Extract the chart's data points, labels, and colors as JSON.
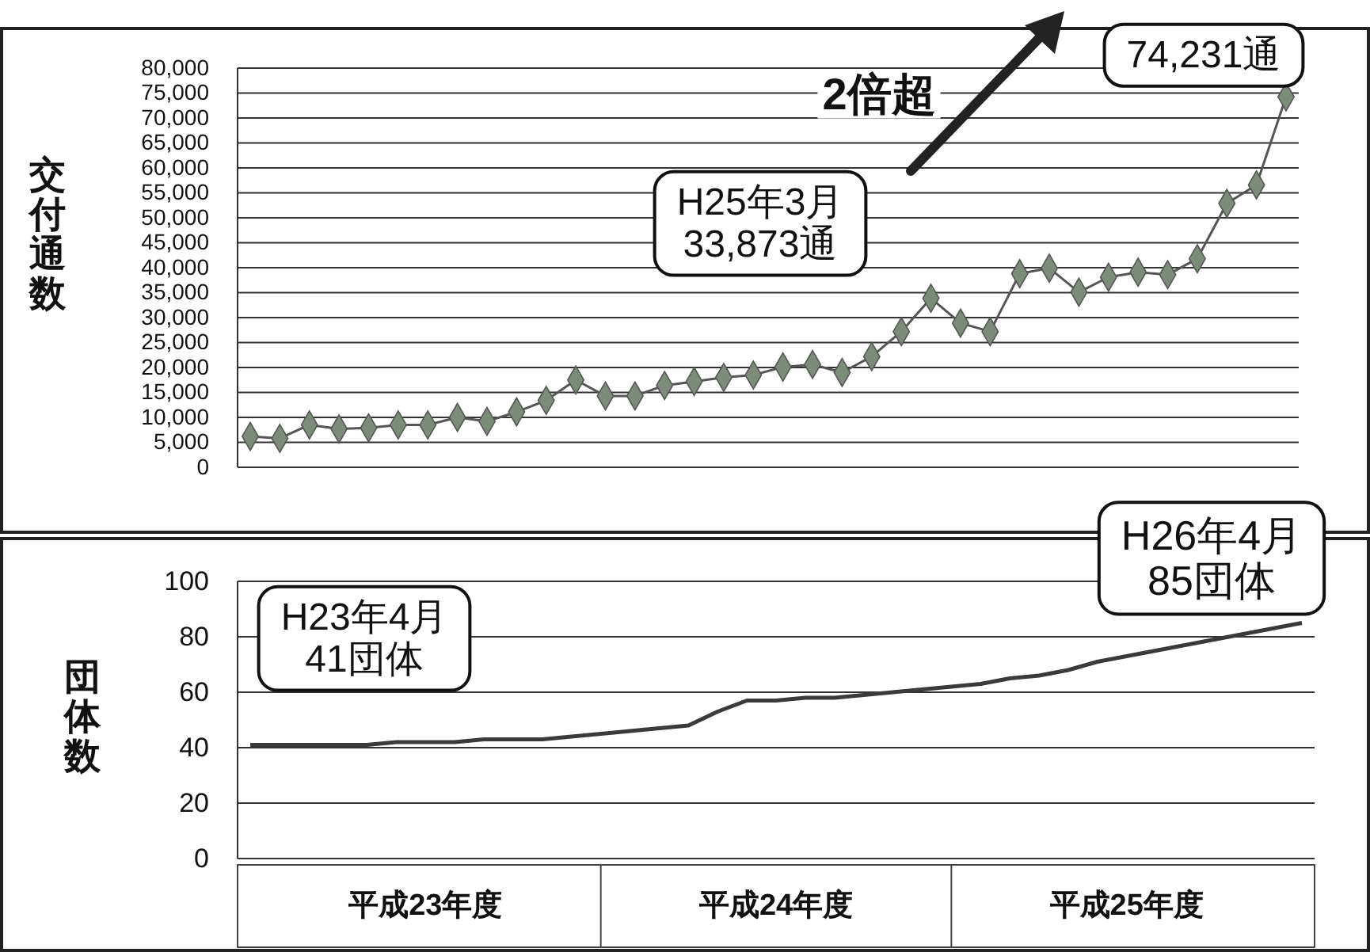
{
  "chart_data": [
    {
      "type": "line",
      "ylabel": "交付通数",
      "categories": [
        null,
        null,
        null,
        null,
        null,
        null,
        null,
        null,
        null,
        null,
        null,
        null,
        null,
        null,
        null,
        null,
        null,
        null,
        null,
        null,
        null,
        null,
        null,
        null,
        null,
        null,
        null,
        null,
        null,
        null,
        null,
        null,
        null,
        null,
        null,
        null
      ],
      "series": [
        {
          "color": "#7d8c7a",
          "values": [
            6200,
            5800,
            8500,
            7700,
            7900,
            8500,
            8500,
            10000,
            9200,
            11100,
            13400,
            17500,
            14300,
            14300,
            16400,
            17200,
            18000,
            18500,
            20100,
            20600,
            19000,
            22200,
            27200,
            33873,
            28900,
            27200,
            38800,
            39900,
            35100,
            38100,
            39100,
            38600,
            41800,
            52900,
            56600,
            74231
          ]
        }
      ],
      "ylim": [
        0,
        80000
      ],
      "yticks": [
        0,
        {
          "value": 5000,
          "label": "5,000"
        },
        {
          "value": 10000,
          "label": "10,000"
        },
        {
          "value": 15000,
          "label": "15,000"
        },
        {
          "value": 20000,
          "label": "20,000"
        },
        {
          "value": 25000,
          "label": "25,000"
        },
        {
          "value": 30000,
          "label": "30,000"
        },
        {
          "value": 35000,
          "label": "35,000"
        },
        {
          "value": 40000,
          "label": "40,000"
        },
        {
          "value": 45000,
          "label": "45,000"
        },
        {
          "value": 50000,
          "label": "50,000"
        },
        {
          "value": 55000,
          "label": "55,000"
        },
        {
          "value": 60000,
          "label": "60,000"
        },
        {
          "value": 65000,
          "label": "65,000"
        },
        {
          "value": 70000,
          "label": "70,000"
        },
        {
          "value": 75000,
          "label": "75,000"
        },
        {
          "value": 80000,
          "label": "80,000"
        }
      ],
      "grid": "y",
      "marker": "diamond",
      "tick_labels": "y",
      "annotations": [
        "2倍超",
        "H25年3月\n33,873通",
        "74,231通"
      ]
    },
    {
      "type": "line",
      "ylabel": "団体数",
      "categories": [
        null,
        null,
        null,
        null,
        null,
        null,
        "平成23年度",
        null,
        null,
        null,
        null,
        null,
        null,
        null,
        null,
        null,
        null,
        null,
        "平成24年度",
        null,
        null,
        null,
        null,
        null,
        null,
        null,
        null,
        null,
        null,
        null,
        "平成25年度",
        null,
        null,
        null,
        null,
        null,
        null
      ],
      "series": [
        {
          "color": "#3a3a3a",
          "values": [
            41,
            41,
            41,
            41,
            41,
            42,
            42,
            42,
            43,
            43,
            43,
            44,
            45,
            46,
            47,
            48,
            53,
            57,
            57,
            58,
            58,
            59,
            60,
            61,
            62,
            63,
            65,
            66,
            68,
            71,
            73,
            75,
            77,
            79,
            81,
            83,
            85
          ]
        }
      ],
      "ylim": [
        0,
        100
      ],
      "yticks": [
        0,
        20,
        40,
        60,
        80,
        100
      ],
      "grid": "y",
      "marker": "none",
      "annotations": [
        "H23年4月\n41団体",
        "H26年4月\n85団体"
      ]
    }
  ]
}
